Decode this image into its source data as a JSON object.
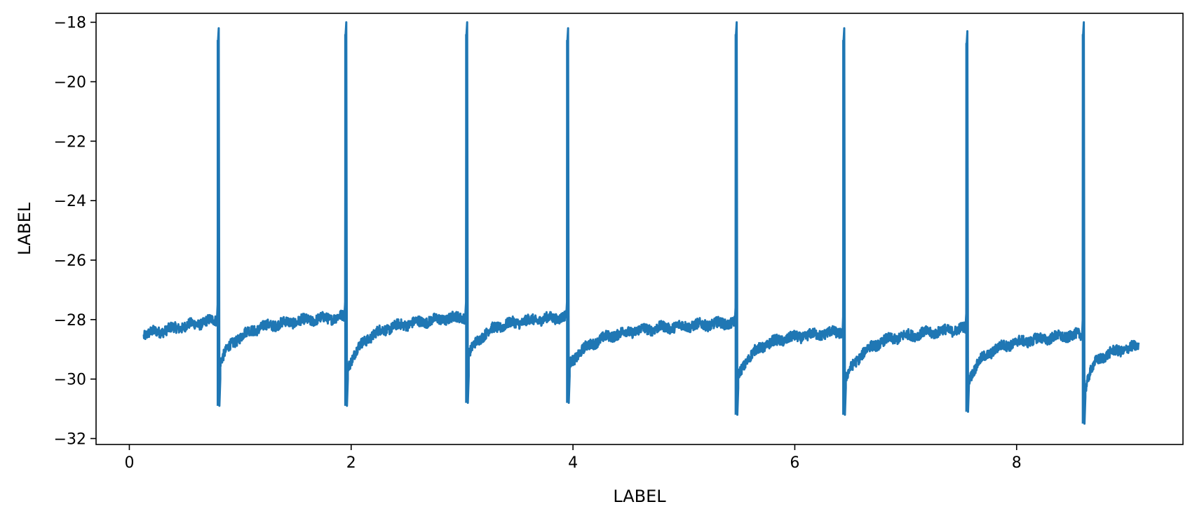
{
  "chart_data": {
    "type": "line",
    "title": "",
    "xlabel": "LABEL",
    "ylabel": "LABEL",
    "xlim": [
      -0.3,
      9.5
    ],
    "ylim": [
      -32.2,
      -17.7
    ],
    "x_ticks": [
      0,
      2,
      4,
      6,
      8
    ],
    "y_ticks": [
      -32,
      -30,
      -28,
      -26,
      -24,
      -22,
      -20,
      -18
    ],
    "x_tick_labels": [
      "0",
      "2",
      "4",
      "6",
      "8"
    ],
    "y_tick_labels": [
      "−32",
      "−30",
      "−28",
      "−26",
      "−24",
      "−22",
      "−20",
      "−18"
    ],
    "grid": false,
    "legend": "none",
    "line_color": "#1f77b4",
    "x_start": 0.13,
    "x_end": 9.1,
    "spikes": [
      {
        "x": 0.8,
        "peak": -18.6,
        "trough": -30.9
      },
      {
        "x": 1.95,
        "peak": -18.4,
        "trough": -30.9
      },
      {
        "x": 3.04,
        "peak": -18.4,
        "trough": -30.8
      },
      {
        "x": 3.95,
        "peak": -18.6,
        "trough": -30.8
      },
      {
        "x": 5.47,
        "peak": -18.4,
        "trough": -31.2
      },
      {
        "x": 6.44,
        "peak": -18.6,
        "trough": -31.2
      },
      {
        "x": 7.55,
        "peak": -18.7,
        "trough": -31.1
      },
      {
        "x": 8.6,
        "peak": -18.4,
        "trough": -31.5
      }
    ],
    "baseline_segments": [
      {
        "x0": 0.13,
        "x1": 0.79,
        "y0": -28.5,
        "y1": -28.0
      },
      {
        "x0": 0.82,
        "x1": 1.94,
        "y0": -29.4,
        "y1": -27.9
      },
      {
        "x0": 1.97,
        "x1": 3.03,
        "y0": -29.6,
        "y1": -27.9
      },
      {
        "x0": 3.06,
        "x1": 3.94,
        "y0": -29.2,
        "y1": -27.9
      },
      {
        "x0": 3.97,
        "x1": 5.46,
        "y0": -29.5,
        "y1": -28.1
      },
      {
        "x0": 5.49,
        "x1": 6.43,
        "y0": -29.9,
        "y1": -28.4
      },
      {
        "x0": 6.46,
        "x1": 7.54,
        "y0": -30.0,
        "y1": -28.3
      },
      {
        "x0": 7.57,
        "x1": 8.59,
        "y0": -30.0,
        "y1": -28.5
      },
      {
        "x0": 8.62,
        "x1": 9.1,
        "y0": -30.3,
        "y1": -28.9
      }
    ]
  }
}
